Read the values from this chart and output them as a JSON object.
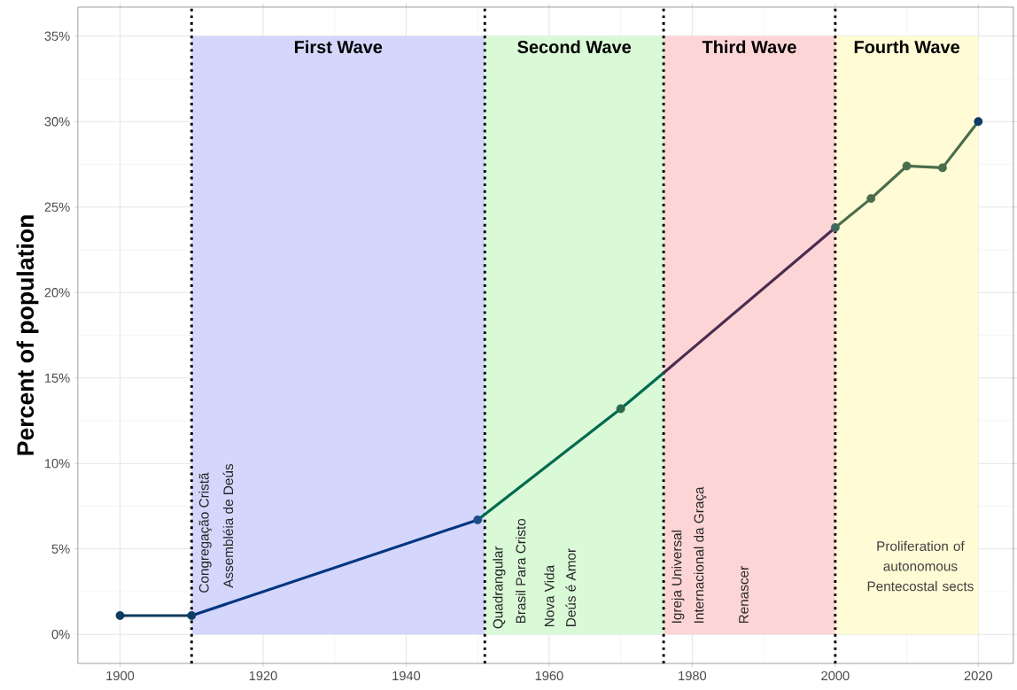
{
  "chart_data": {
    "type": "line",
    "ylabel": "Percent of population",
    "xlim": [
      1894.1,
      2024.9
    ],
    "ylim": [
      -1.7,
      36.7
    ],
    "xticks": [
      1900,
      1920,
      1940,
      1960,
      1980,
      2000,
      2020
    ],
    "yticks": [
      {
        "value": 0,
        "label": "0%"
      },
      {
        "value": 5,
        "label": "5%"
      },
      {
        "value": 10,
        "label": "10%"
      },
      {
        "value": 15,
        "label": "15%"
      },
      {
        "value": 20,
        "label": "20%"
      },
      {
        "value": 25,
        "label": "25%"
      },
      {
        "value": 30,
        "label": "30%"
      },
      {
        "value": 35,
        "label": "35%"
      }
    ],
    "grid": true,
    "series": [
      {
        "x": [
          1900,
          1910
        ],
        "values": [
          1.1,
          1.1
        ],
        "color": "#0e3a5e"
      },
      {
        "x": [
          1910,
          1950
        ],
        "values": [
          1.1,
          6.7
        ],
        "color": "#003580"
      },
      {
        "x": [
          1950,
          1970,
          1976
        ],
        "values": [
          6.7,
          13.2,
          15.3
        ],
        "color": "#006a4e"
      },
      {
        "x": [
          1976,
          2000
        ],
        "values": [
          15.3,
          23.8
        ],
        "color": "#4b2c50"
      },
      {
        "x": [
          2000,
          2005,
          2010,
          2015,
          2020
        ],
        "values": [
          23.8,
          25.5,
          27.4,
          27.3,
          30.0
        ],
        "color": "#4a6e4c"
      },
      {
        "type": "scatter",
        "marker": "circle",
        "x": [
          1900,
          1910,
          1950,
          1970,
          2000,
          2005,
          2010,
          2015,
          2020
        ],
        "values": [
          1.1,
          1.1,
          6.7,
          13.2,
          23.8,
          25.5,
          27.4,
          27.3,
          30.0
        ],
        "colors": [
          "#0e3d62",
          "#0e3d62",
          "#1c4e88",
          "#2a6a4c",
          "#3f6a5e",
          "#4a6e4c",
          "#4a6e4c",
          "#4a6e4c",
          "#0e3d62"
        ]
      }
    ],
    "bands": [
      {
        "axis": "x",
        "from": 1910,
        "to": 1951,
        "label": "First Wave",
        "color": "#d4d6fb"
      },
      {
        "axis": "x",
        "from": 1951,
        "to": 1976,
        "label": "Second Wave",
        "color": "#d9f9d7"
      },
      {
        "axis": "x",
        "from": 1976,
        "to": 2000,
        "label": "Third Wave",
        "color": "#fdd5d6"
      },
      {
        "axis": "x",
        "from": 2000,
        "to": 2020,
        "label": "Fourth Wave",
        "color": "#fffbd5"
      }
    ],
    "ref_lines": [
      {
        "axis": "x",
        "value": 1910,
        "line_style": "dotted",
        "color": "#000000"
      },
      {
        "axis": "x",
        "value": 1951,
        "line_style": "dotted",
        "color": "#000000"
      },
      {
        "axis": "x",
        "value": 1976,
        "line_style": "dotted",
        "color": "#000000"
      },
      {
        "axis": "x",
        "value": 2000,
        "line_style": "dotted",
        "color": "#000000"
      }
    ],
    "annotations": [
      "Congregação Cristã",
      "Assembléia de Deús",
      "Quadrangular",
      "Brasil Para Cristo",
      "Nova Vida",
      "Deús é Amor",
      "Igreja Universal",
      "Internacional da Graça",
      "Renascer",
      "Proliferation of autonomous Pentecostal sects"
    ]
  }
}
